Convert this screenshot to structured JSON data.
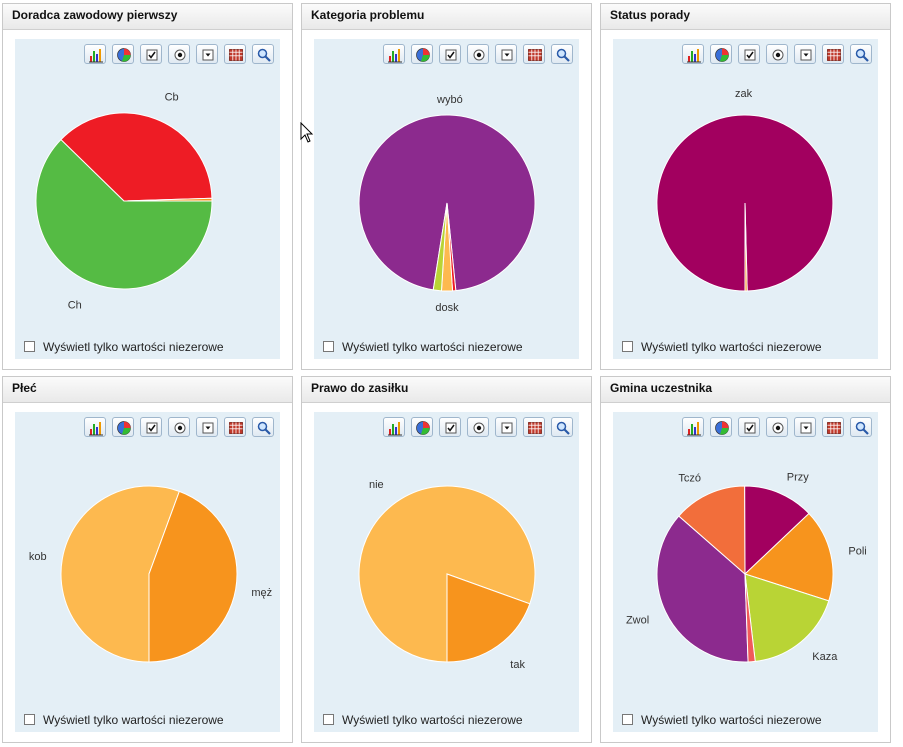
{
  "toolbar_icons": [
    "bar-chart-icon",
    "pie-chart-icon",
    "checkbox-icon",
    "radio-icon",
    "dropdown-icon",
    "table-icon",
    "zoom-icon"
  ],
  "nonzero_label": "Wyświetl tylko wartości niezerowe",
  "chart_data": [
    {
      "type": "pie",
      "title": "Doradca zawodowy pierwszy",
      "slices": [
        {
          "label": "Ch",
          "value": 62.3,
          "color": "#55bb44"
        },
        {
          "label": "Cb",
          "value": 37.2,
          "color": "#ee1c25"
        },
        {
          "label": "",
          "value": 0.5,
          "color": "#f7941d"
        }
      ]
    },
    {
      "type": "pie",
      "title": "Kategoria problemu",
      "slices": [
        {
          "label": "wybó",
          "value": 95.9,
          "color": "#8c2a8e"
        },
        {
          "label": "",
          "value": 0.6,
          "color": "#ee1c25"
        },
        {
          "label": "dosk",
          "value": 2.0,
          "color": "#fdb94f"
        },
        {
          "label": "",
          "value": 1.5,
          "color": "#b9d435"
        }
      ]
    },
    {
      "type": "pie",
      "title": "Status porady",
      "slices": [
        {
          "label": "zak",
          "value": 99.6,
          "color": "#a2005f"
        },
        {
          "label": "",
          "value": 0.4,
          "color": "#f7941d"
        }
      ]
    },
    {
      "type": "pie",
      "title": "Płeć",
      "slices": [
        {
          "label": "kob",
          "value": 55.6,
          "color": "#fdb94f"
        },
        {
          "label": "męż",
          "value": 44.4,
          "color": "#f7941d"
        }
      ]
    },
    {
      "type": "pie",
      "title": "Prawo do zasiłku",
      "slices": [
        {
          "label": "nie",
          "value": 80.5,
          "color": "#fdb94f"
        },
        {
          "label": "tak",
          "value": 19.5,
          "color": "#f7941d"
        }
      ]
    },
    {
      "type": "pie",
      "title": "Gmina uczestnika",
      "slices": [
        {
          "label": "Zwol",
          "value": 37.0,
          "color": "#8c2a8e"
        },
        {
          "label": "Tczó",
          "value": 13.5,
          "color": "#f26e3b"
        },
        {
          "label": "Przy",
          "value": 13.0,
          "color": "#a2005f"
        },
        {
          "label": "Poli",
          "value": 17.0,
          "color": "#f7941d"
        },
        {
          "label": "Kaza",
          "value": 18.2,
          "color": "#b9d435"
        },
        {
          "label": "",
          "value": 1.3,
          "color": "#f15a5a"
        }
      ]
    }
  ]
}
